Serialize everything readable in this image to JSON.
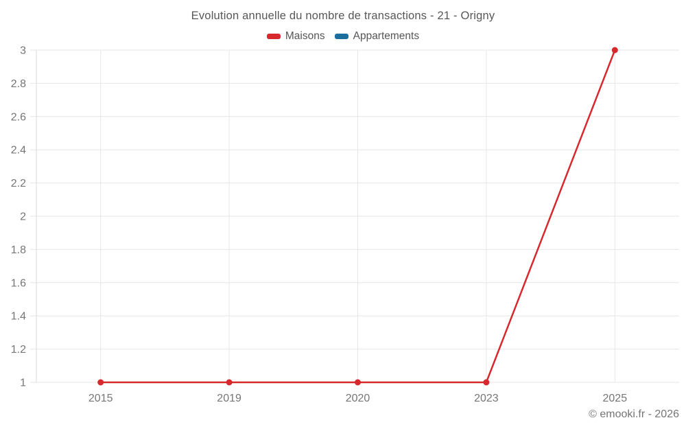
{
  "title": "Evolution annuelle du nombre de transactions - 21 - Origny",
  "legend": {
    "items": [
      {
        "label": "Maisons",
        "color": "#d7282d"
      },
      {
        "label": "Appartements",
        "color": "#1c6e9c"
      }
    ]
  },
  "footer": {
    "credit": "© emooki.fr - 2026"
  },
  "colors": {
    "grid": "#e6e6e6",
    "axis": "#d9d9d9",
    "tick_label": "#757575",
    "title_text": "#575757",
    "legend_text": "#555555",
    "footer_text": "#757575",
    "background": "#ffffff",
    "maisons": "#d7282d",
    "appartements": "#1c6e9c"
  },
  "chart_data": {
    "type": "line",
    "title": "Evolution annuelle du nombre de transactions - 21 - Origny",
    "categories": [
      "2015",
      "2019",
      "2020",
      "2023",
      "2025"
    ],
    "series": [
      {
        "name": "Maisons",
        "color": "#d7282d",
        "values": [
          1,
          1,
          1,
          1,
          3
        ]
      },
      {
        "name": "Appartements",
        "color": "#1c6e9c",
        "values": [
          null,
          null,
          null,
          null,
          null
        ]
      }
    ],
    "xlabel": "",
    "ylabel": "",
    "ylim": [
      1,
      3
    ],
    "ytick_step": 0.2,
    "yticks": [
      1,
      1.2,
      1.4,
      1.6,
      1.8,
      2,
      2.2,
      2.4,
      2.6,
      2.8,
      3
    ],
    "grid": true,
    "legend_position": "top",
    "point_radius": 4.5,
    "line_width": 2.5
  }
}
